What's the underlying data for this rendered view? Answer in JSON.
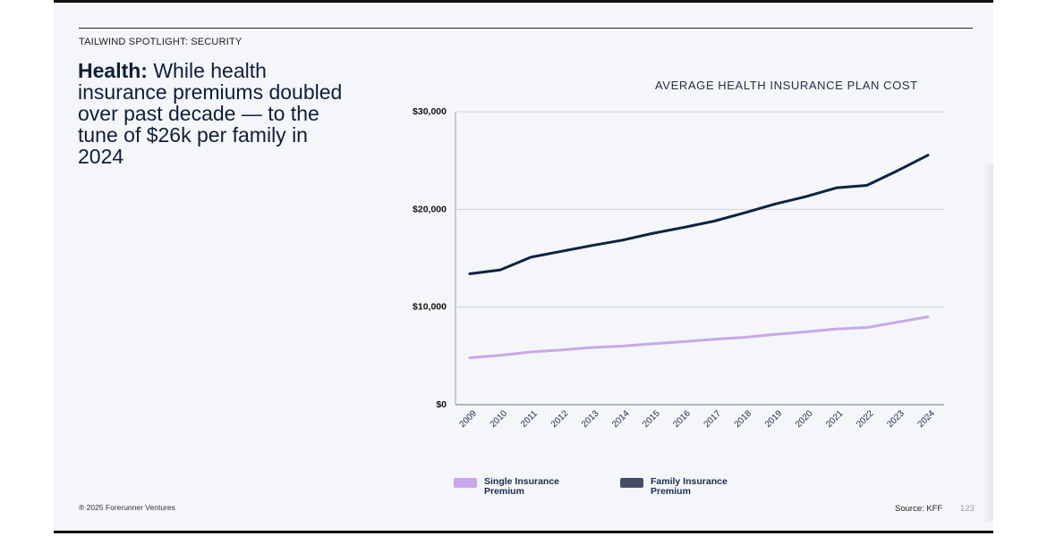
{
  "header": {
    "eyebrow": "TAILWIND SPOTLIGHT: SECURITY",
    "headline_bold": "Health:",
    "headline_rest": " While health insurance premiums doubled over past decade — to the tune of $26k per family in 2024"
  },
  "footer": {
    "copyright": "® 2025 Forerunner Ventures",
    "source": "Source: KFF",
    "page_number": "123"
  },
  "colors": {
    "single": "#c9a7ec",
    "family": "#0d2340",
    "family_legend": "#454e66",
    "grid": "#cfd3da"
  },
  "chart_data": {
    "type": "line",
    "title": "AVERAGE HEALTH INSURANCE PLAN COST",
    "xlabel": "",
    "ylabel": "",
    "ylim": [
      0,
      30000
    ],
    "yticks": [
      0,
      10000,
      20000,
      30000
    ],
    "ytick_labels": [
      "$0",
      "$10,000",
      "$20,000",
      "$30,000"
    ],
    "x": [
      "2009",
      "2010",
      "2011",
      "2012",
      "2013",
      "2014",
      "2015",
      "2016",
      "2017",
      "2018",
      "2019",
      "2020",
      "2021",
      "2022",
      "2023",
      "2024"
    ],
    "series": [
      {
        "name": "Single Insurance Premium",
        "values": [
          4800,
          5050,
          5400,
          5600,
          5850,
          6000,
          6250,
          6450,
          6700,
          6900,
          7200,
          7450,
          7750,
          7900,
          8450,
          9000
        ]
      },
      {
        "name": "Family Insurance Premium",
        "values": [
          13400,
          13800,
          15100,
          15700,
          16300,
          16850,
          17550,
          18150,
          18800,
          19650,
          20550,
          21300,
          22200,
          22450,
          23950,
          25550
        ]
      }
    ],
    "legend": [
      "Single Insurance Premium",
      "Family Insurance Premium"
    ],
    "grid": true
  }
}
